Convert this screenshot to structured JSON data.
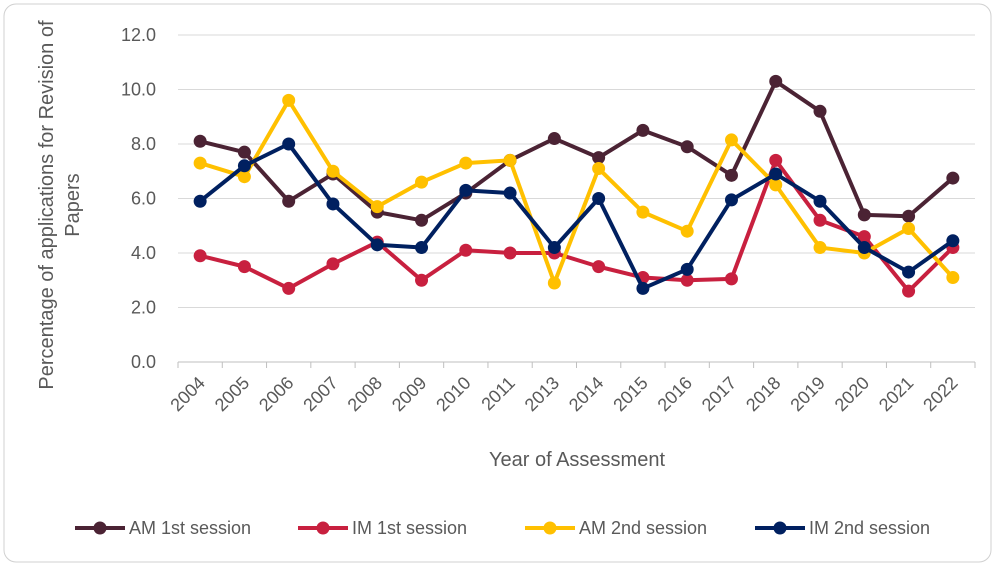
{
  "chart_data": {
    "type": "line",
    "y_label": "Percentage of applications for Revision of Papers",
    "x_label": "Year of Assessment",
    "categories": [
      "2004",
      "2005",
      "2006",
      "2007",
      "2008",
      "2009",
      "2010",
      "2011",
      "2013",
      "2014",
      "2015",
      "2016",
      "2017",
      "2018",
      "2019",
      "2020",
      "2021",
      "2022"
    ],
    "series": [
      {
        "name": "AM 1st session",
        "color": "#4b2334",
        "values": [
          8.1,
          7.7,
          5.9,
          6.9,
          5.5,
          5.2,
          6.2,
          7.4,
          8.2,
          7.5,
          8.5,
          7.9,
          6.85,
          10.3,
          9.2,
          5.4,
          5.35,
          6.75
        ]
      },
      {
        "name": "IM 1st session",
        "color": "#c8203f",
        "values": [
          3.9,
          3.5,
          2.7,
          3.6,
          4.4,
          3.0,
          4.1,
          4.0,
          4.0,
          3.5,
          3.1,
          3.0,
          3.05,
          7.4,
          5.2,
          4.6,
          2.6,
          4.2
        ]
      },
      {
        "name": "AM 2nd session",
        "color": "#ffc000",
        "values": [
          7.3,
          6.8,
          9.6,
          7.0,
          5.7,
          6.6,
          7.3,
          7.4,
          2.9,
          7.1,
          5.5,
          4.8,
          8.15,
          6.5,
          4.2,
          4.0,
          4.9,
          3.1
        ]
      },
      {
        "name": "IM 2nd session",
        "color": "#002060",
        "values": [
          5.9,
          7.2,
          8.0,
          5.8,
          4.3,
          4.2,
          6.3,
          6.2,
          4.2,
          6.0,
          2.7,
          3.4,
          5.95,
          6.9,
          5.9,
          4.2,
          3.3,
          4.45
        ]
      }
    ],
    "ylim": [
      0,
      12
    ],
    "yticks": [
      {
        "value": 0,
        "label": "0.0"
      },
      {
        "value": 2,
        "label": "2.0"
      },
      {
        "value": 4,
        "label": "4.0"
      },
      {
        "value": 6,
        "label": "6.0"
      },
      {
        "value": 8,
        "label": "8.0"
      },
      {
        "value": 10,
        "label": "10.0"
      },
      {
        "value": 12,
        "label": "12.0"
      }
    ],
    "grid": true,
    "legend": "bottom"
  }
}
